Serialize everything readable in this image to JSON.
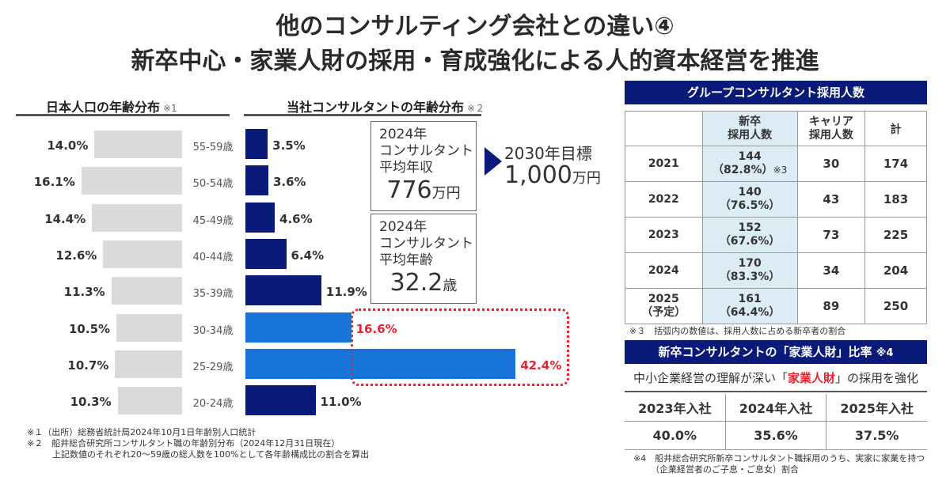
{
  "title": {
    "line1": "他のコンサルティング会社との違い④",
    "line2": "新卒中心・家業人財の採用・育成強化による人的資本経営を推進"
  },
  "japan_pop": {
    "heading": "日本人口の年齢分布",
    "note": "※1",
    "values": [
      "14.0%",
      "16.1%",
      "14.4%",
      "12.6%",
      "11.3%",
      "10.5%",
      "10.7%",
      "10.3%"
    ]
  },
  "company": {
    "heading": "当社コンサルタントの年齢分布",
    "note": "※２",
    "values": [
      "3.5%",
      "3.6%",
      "4.6%",
      "6.4%",
      "11.9%",
      "16.6%",
      "42.4%",
      "11.0%"
    ]
  },
  "ages": [
    "55-59歳",
    "50-54歳",
    "45-49歳",
    "40-44歳",
    "35-39歳",
    "30-34歳",
    "25-29歳",
    "20-24歳"
  ],
  "chart_data": {
    "type": "bar",
    "categories": [
      "55-59歳",
      "50-54歳",
      "45-49歳",
      "40-44歳",
      "35-39歳",
      "30-34歳",
      "25-29歳",
      "20-24歳"
    ],
    "series": [
      {
        "name": "日本人口の年齢分布",
        "values": [
          14.0,
          16.1,
          14.4,
          12.6,
          11.3,
          10.5,
          10.7,
          10.3
        ]
      },
      {
        "name": "当社コンサルタントの年齢分布",
        "values": [
          3.5,
          3.6,
          4.6,
          6.4,
          11.9,
          16.6,
          42.4,
          11.0
        ]
      }
    ],
    "highlight_categories": [
      "30-34歳",
      "25-29歳"
    ],
    "colors": {
      "japan": "#d9d9d9",
      "company": "#0a1a78",
      "company_highlight": "#1874d8",
      "highlight_text": "#e8222e"
    }
  },
  "income_box": {
    "l1": "2024年",
    "l2": "コンサルタント",
    "l3": "平均年収",
    "value": "776",
    "unit": "万円"
  },
  "age_box": {
    "l1": "2024年",
    "l2": "コンサルタント",
    "l3": "平均年齢",
    "value": "32.2",
    "unit": "歳"
  },
  "target": {
    "l1": "2030年目標",
    "value": "1,000",
    "unit": "万円"
  },
  "recruit": {
    "heading": "グループコンサルタント採用人数",
    "headers": {
      "shinsotsu": "新卒\n採用人数",
      "career": "キャリア\n採用人数",
      "total": "計"
    },
    "rows": [
      {
        "year": "2021",
        "new": "144",
        "pct": "（82.8%）",
        "mark": "※3",
        "career": "30",
        "total": "174"
      },
      {
        "year": "2022",
        "new": "140",
        "pct": "（76.5%）",
        "mark": "",
        "career": "43",
        "total": "183"
      },
      {
        "year": "2023",
        "new": "152",
        "pct": "（67.6%）",
        "mark": "",
        "career": "73",
        "total": "225"
      },
      {
        "year": "2024",
        "new": "170",
        "pct": "（83.3%）",
        "mark": "",
        "career": "34",
        "total": "204"
      },
      {
        "year": "2025",
        "year2": "（予定）",
        "new": "161",
        "pct": "（64.4%）",
        "mark": "",
        "career": "89",
        "total": "250"
      }
    ],
    "footnote": "※３　括弧内の数値は、採用人数に占める新卒者の割合"
  },
  "kagyo": {
    "heading": "新卒コンサルタントの「家業人財」比率",
    "note": "※4",
    "sub_pre": "中小企業経営の理解が深い「",
    "sub_hl": "家業人財",
    "sub_post": "」の採用を強化",
    "years": [
      "2023年入社",
      "2024年入社",
      "2025年入社"
    ],
    "values": [
      "40.0%",
      "35.6%",
      "37.5%"
    ],
    "footnote1": "※4　船井総合研究所新卒コンサルタント職採用のうち、実家に家業を持つ",
    "footnote2": "（企業経営者のご子息・ご息女）割合"
  },
  "footnotes": {
    "f1": "※１（出所）総務省統計局2024年10月1日年齢別人口統計",
    "f2": "※２　船井総合研究所コンサルタント職の年齢別分布（2024年12月31日現在）",
    "f3": "上記数値のそれぞれ20～59歳の総人数を100%として各年齢構成比の割合を算出"
  }
}
